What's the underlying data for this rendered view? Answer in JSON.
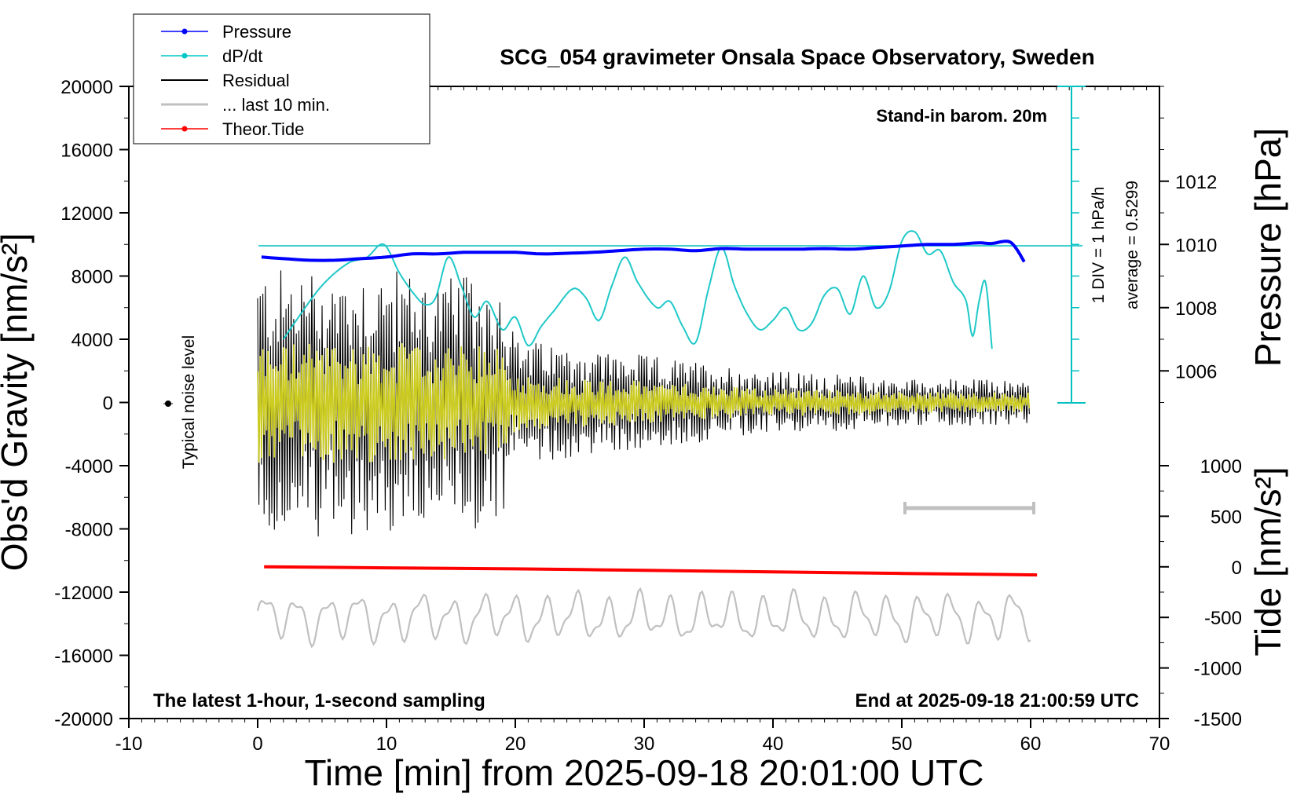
{
  "chart_data": {
    "type": "line",
    "title": "SCG_054 gravimeter Onsala Space Observatory, Sweden",
    "xlabel": "Time [min] from 2025-09-18 20:01:00 UTC",
    "ylabel_left": "Obs'd Gravity [nm/s²]",
    "ylabel_right_top": "Pressure [hPa]",
    "ylabel_right_bottom": "Tide [nm/s²]",
    "xlim": [
      -10,
      70
    ],
    "ylim_gravity": [
      -20000,
      20000
    ],
    "ylim_pressure": [
      1005,
      1015
    ],
    "ylim_tide": [
      -1500,
      1500
    ],
    "x_ticks": [
      "-10",
      "0",
      "10",
      "20",
      "30",
      "40",
      "50",
      "60",
      "70"
    ],
    "y_ticks_gravity": [
      "20000",
      "16000",
      "12000",
      "8000",
      "4000",
      "0",
      "-4000",
      "-8000",
      "-12000",
      "-16000",
      "-20000"
    ],
    "y_ticks_pressure": [
      "1012",
      "1010",
      "1008",
      "1006"
    ],
    "y_ticks_tide": [
      "1000",
      "500",
      "0",
      "-500",
      "-1000",
      "-1500"
    ],
    "annotations": {
      "stand_in": "Stand-in barom. 20m",
      "div_label": "1 DIV = 1 hPa/h",
      "average_label": "average = 0.5299",
      "noise_label": "Typical noise level",
      "latest_hour": "The latest 1-hour, 1-second sampling",
      "end_at": "End at 2025-09-18 21:00:59 UTC"
    },
    "legend": [
      {
        "label": "Pressure",
        "color": "#0000ff",
        "marker": "dot"
      },
      {
        "label": "dP/dt",
        "color": "#00c8c8",
        "marker": "dot"
      },
      {
        "label": "Residual",
        "color": "#000000",
        "marker": "none"
      },
      {
        "label": "... last 10 min.",
        "color": "#c0c0c0",
        "marker": "none"
      },
      {
        "label": "Theor.Tide",
        "color": "#ff0000",
        "marker": "dot"
      }
    ],
    "series": {
      "pressure_hpa": {
        "name": "Pressure",
        "x": [
          0.3,
          2,
          4,
          6,
          8,
          10,
          12,
          14,
          16,
          18,
          20,
          22,
          24,
          26,
          28,
          30,
          32,
          34,
          36,
          38,
          40,
          42,
          44,
          46,
          48,
          50,
          52,
          54,
          56,
          57,
          58,
          58.5,
          59,
          59.5
        ],
        "values": [
          1009.6,
          1009.55,
          1009.5,
          1009.5,
          1009.55,
          1009.6,
          1009.7,
          1009.7,
          1009.75,
          1009.75,
          1009.75,
          1009.7,
          1009.72,
          1009.75,
          1009.8,
          1009.85,
          1009.85,
          1009.8,
          1009.87,
          1009.85,
          1009.85,
          1009.85,
          1009.87,
          1009.85,
          1009.9,
          1009.95,
          1010.0,
          1010.0,
          1010.05,
          1010.03,
          1010.1,
          1010.05,
          1009.8,
          1009.45
        ]
      },
      "dpdt_hpa_per_h": {
        "name": "dP/dt",
        "x": [
          2,
          3,
          5,
          7,
          8.5,
          9.8,
          11,
          12.2,
          13,
          13.8,
          14.8,
          15.8,
          16.8,
          17.8,
          19,
          20,
          21,
          22,
          23,
          24.5,
          25.5,
          26.5,
          27.5,
          28.5,
          29.5,
          31,
          32,
          33,
          34,
          35,
          36,
          37,
          38,
          39,
          40,
          41,
          42,
          43,
          44,
          45,
          46,
          47,
          48,
          49,
          50,
          51,
          52,
          53,
          54,
          55,
          55.5,
          56,
          56.5,
          57
        ],
        "values": [
          2.0,
          2.6,
          3.7,
          4.4,
          4.6,
          5.0,
          4.1,
          3.4,
          3.1,
          3.3,
          4.6,
          3.7,
          2.7,
          3.2,
          2.3,
          2.7,
          1.8,
          2.4,
          2.9,
          3.6,
          3.3,
          2.6,
          3.7,
          4.6,
          3.8,
          3.0,
          3.2,
          2.4,
          1.9,
          3.6,
          4.9,
          3.7,
          2.8,
          2.3,
          2.6,
          3.0,
          2.3,
          2.5,
          3.4,
          3.6,
          2.8,
          4.0,
          3.0,
          3.5,
          5.1,
          5.4,
          4.7,
          4.8,
          3.8,
          3.2,
          2.1,
          3.2,
          3.8,
          1.7
        ]
      },
      "dpdt_average": 0.5299,
      "theor_tide_nm_s2": {
        "name": "Theor.Tide",
        "x": [
          0.5,
          10,
          20,
          30,
          40,
          50,
          60.5
        ],
        "values": [
          0,
          -10,
          -20,
          -35,
          -50,
          -65,
          -80
        ]
      },
      "residual_envelope_nm_s2": {
        "name": "Residual",
        "x": [
          0,
          5,
          10,
          15,
          19,
          20,
          25,
          30,
          35,
          40,
          45,
          50,
          55,
          60
        ],
        "values": [
          8500,
          8500,
          8500,
          8000,
          8000,
          4000,
          3500,
          3000,
          2500,
          2000,
          1800,
          1500,
          1500,
          1400
        ]
      }
    }
  }
}
